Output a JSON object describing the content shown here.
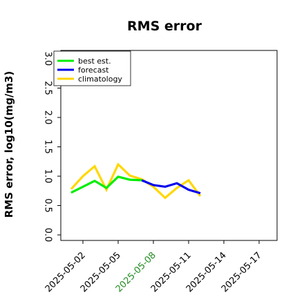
{
  "chart_data": {
    "type": "line",
    "title": "RMS error",
    "xlabel": "",
    "ylabel": "RMS error, log10(mg/m3)",
    "ylim": [
      0,
      3.0
    ],
    "yticks": [
      "0.0",
      "0.5",
      "1.0",
      "1.5",
      "2.0",
      "2.5",
      "3.0"
    ],
    "xticks": [
      {
        "label": "2025-05-02",
        "color": "#000000"
      },
      {
        "label": "2025-05-05",
        "color": "#000000"
      },
      {
        "label": "2025-05-08",
        "color": "#228B22"
      },
      {
        "label": "2025-05-11",
        "color": "#000000"
      },
      {
        "label": "2025-05-14",
        "color": "#000000"
      },
      {
        "label": "2025-05-17",
        "color": "#000000"
      }
    ],
    "legend_position": "upper-left",
    "series": [
      {
        "name": "best est.",
        "color": "#00ee00",
        "x": [
          "2025-05-01",
          "2025-05-03",
          "2025-05-04",
          "2025-05-05",
          "2025-05-06",
          "2025-05-07"
        ],
        "values": [
          0.72,
          0.92,
          0.8,
          0.99,
          0.94,
          0.93
        ]
      },
      {
        "name": "forecast",
        "color": "#0000ee",
        "x": [
          "2025-05-07",
          "2025-05-08",
          "2025-05-09",
          "2025-05-10",
          "2025-05-11",
          "2025-05-12"
        ],
        "values": [
          0.93,
          0.85,
          0.82,
          0.88,
          0.77,
          0.71
        ]
      },
      {
        "name": "climatology",
        "color": "#ffd700",
        "x": [
          "2025-05-01",
          "2025-05-02",
          "2025-05-03",
          "2025-05-04",
          "2025-05-05",
          "2025-05-06",
          "2025-05-07",
          "2025-05-08",
          "2025-05-09",
          "2025-05-10",
          "2025-05-11",
          "2025-05-12"
        ],
        "values": [
          0.78,
          1.0,
          1.17,
          0.77,
          1.2,
          1.01,
          0.95,
          0.82,
          0.63,
          0.8,
          0.93,
          0.66
        ]
      }
    ]
  }
}
